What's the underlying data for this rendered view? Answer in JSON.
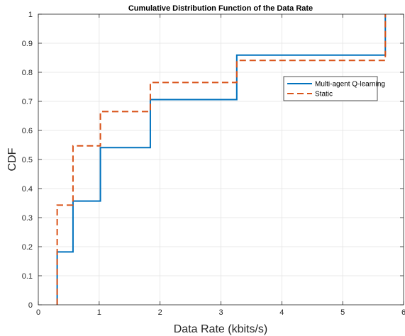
{
  "chart_data": {
    "type": "line",
    "step": true,
    "title": "Cumulative Distribution Function of the Data Rate",
    "xlabel": "Data Rate (kbits/s)",
    "ylabel": "CDF",
    "xlim": [
      0,
      6
    ],
    "ylim": [
      0,
      1
    ],
    "xticks": [
      "0",
      "1",
      "2",
      "3",
      "4",
      "5",
      "6"
    ],
    "yticks": [
      "0",
      "0.1",
      "0.2",
      "0.3",
      "0.4",
      "0.5",
      "0.6",
      "0.7",
      "0.8",
      "0.9",
      "1"
    ],
    "grid": true,
    "legend_position": "top-right",
    "series": [
      {
        "name": "Multi-agent Q-learning",
        "color": "#0072BD",
        "dash": "solid",
        "x": [
          0.31,
          0.31,
          0.57,
          1.02,
          1.84,
          3.26,
          5.7,
          5.7
        ],
        "y": [
          0,
          0.182,
          0.357,
          0.541,
          0.706,
          0.859,
          0.859,
          1.0
        ]
      },
      {
        "name": "Static",
        "color": "#D95319",
        "dash": "dashed",
        "x": [
          0.31,
          0.31,
          0.57,
          1.02,
          1.84,
          3.26,
          5.7,
          5.7
        ],
        "y": [
          0,
          0.343,
          0.547,
          0.665,
          0.765,
          0.841,
          0.841,
          1.0
        ]
      }
    ]
  }
}
